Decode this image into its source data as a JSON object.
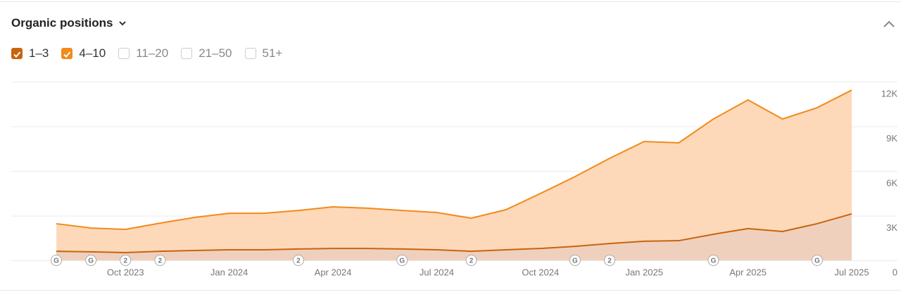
{
  "chart_data": {
    "type": "stacked-area",
    "title": "Organic positions",
    "categories": [
      null,
      null,
      "Oct 2023",
      null,
      null,
      "Jan 2024",
      null,
      null,
      "Apr 2024",
      null,
      null,
      "Jul 2024",
      null,
      null,
      "Oct 2024",
      null,
      null,
      "Jan 2025",
      null,
      null,
      "Apr 2025",
      null,
      null,
      "Jul 2025"
    ],
    "series": [
      {
        "name": "1–3",
        "color": "#c8640f",
        "fill": "#efd0bd",
        "checked": true,
        "values": [
          610,
          570,
          520,
          610,
          660,
          710,
          710,
          760,
          800,
          800,
          760,
          710,
          610,
          710,
          800,
          940,
          1130,
          1280,
          1320,
          1750,
          2130,
          1940,
          2460,
          3120
        ]
      },
      {
        "name": "4–10",
        "color": "#f28a1c",
        "fill": "#fdd9b9",
        "checked": true,
        "values": [
          1850,
          1600,
          1560,
          1890,
          2220,
          2450,
          2450,
          2590,
          2790,
          2700,
          2590,
          2500,
          2220,
          2690,
          3690,
          4680,
          5720,
          6700,
          6570,
          7740,
          8640,
          7550,
          7790,
          8310
        ]
      }
    ],
    "filters": [
      "11–20",
      "21–50",
      "51+"
    ],
    "ylim": [
      0,
      12000
    ],
    "yticks": [
      0,
      {
        "value": 3000,
        "label": "3K"
      },
      {
        "value": 6000,
        "label": "6K"
      },
      {
        "value": 9000,
        "label": "9K"
      },
      {
        "value": 12000,
        "label": "12K"
      }
    ],
    "grid": true,
    "markers": [
      {
        "index": 0,
        "label": "G"
      },
      {
        "index": 1,
        "label": "G"
      },
      {
        "index": 2,
        "label": "2"
      },
      {
        "index": 3,
        "label": "2"
      },
      {
        "index": 7,
        "label": "2"
      },
      {
        "index": 10,
        "label": "G"
      },
      {
        "index": 12,
        "label": "2"
      },
      {
        "index": 15,
        "label": "G"
      },
      {
        "index": 16,
        "label": "2"
      },
      {
        "index": 19,
        "label": "G"
      },
      {
        "index": 22,
        "label": "G"
      }
    ]
  }
}
